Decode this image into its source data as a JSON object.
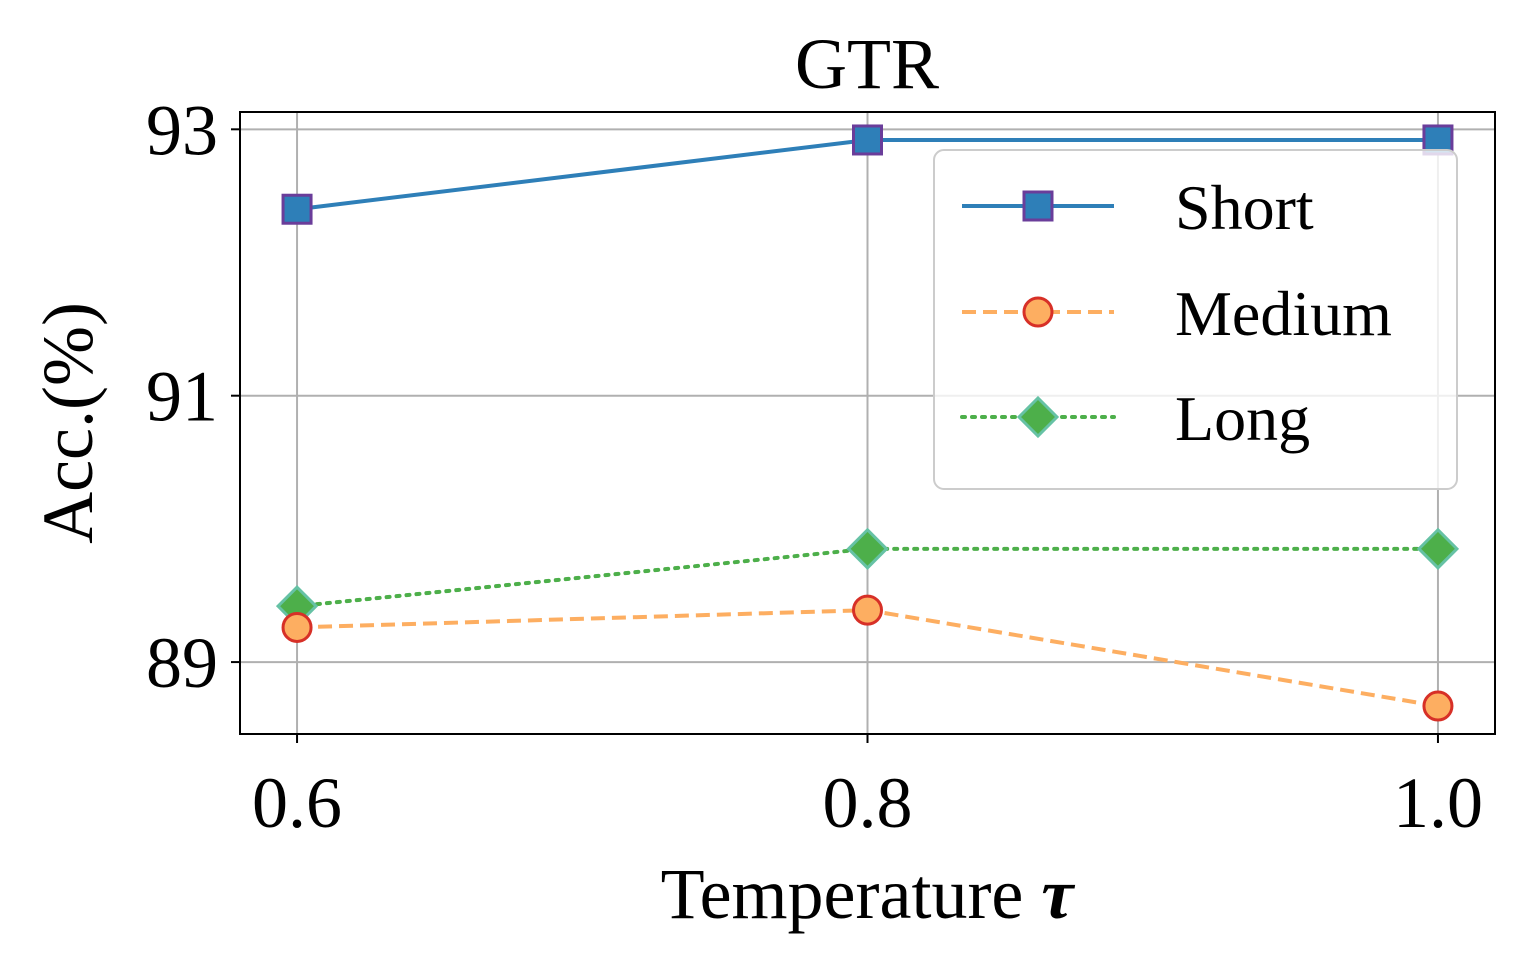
{
  "chart_data": {
    "type": "line",
    "title": "GTR",
    "xlabel": "Temperature",
    "xlabel_symbol": "τ",
    "ylabel": "Acc.(%)",
    "x": [
      0.6,
      0.8,
      1.0
    ],
    "x_tick_labels": [
      "0.6",
      "0.8",
      "1.0"
    ],
    "y_ticks": [
      89,
      91,
      93
    ],
    "y_tick_labels": [
      "89",
      "91",
      "93"
    ],
    "xlim": [
      0.58,
      1.02
    ],
    "ylim": [
      88.46,
      93.13
    ],
    "grid": true,
    "legend_position": "upper-right",
    "series": [
      {
        "name": "Short",
        "values": [
          92.4,
          92.92,
          92.92
        ],
        "color": "#2e7fb8",
        "marker": "square",
        "marker_edge": "#6a3d9a",
        "dash": "solid"
      },
      {
        "name": "Medium",
        "values": [
          89.26,
          89.39,
          88.67
        ],
        "color": "#fdae61",
        "marker": "circle",
        "marker_edge": "#d73027",
        "dash": "dashed"
      },
      {
        "name": "Long",
        "values": [
          89.42,
          89.85,
          89.85
        ],
        "color": "#4daf4a",
        "marker": "diamond",
        "marker_edge": "#66c2a5",
        "dash": "dotted"
      }
    ]
  }
}
